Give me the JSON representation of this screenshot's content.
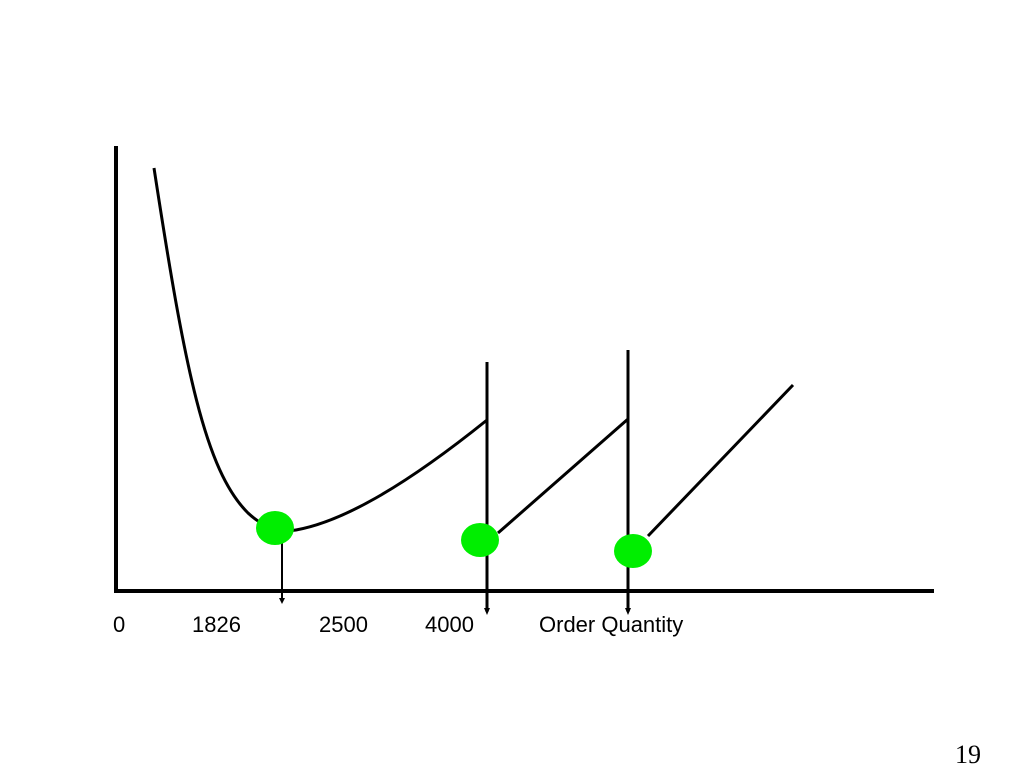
{
  "x_labels": {
    "zero": "0",
    "q1": "1826",
    "q2": "2500",
    "q3": "4000",
    "axis_title": "Order Quantity"
  },
  "page_number": "19",
  "colors": {
    "line": "#000000",
    "marker": "#00ee00",
    "background": "#ffffff"
  }
}
